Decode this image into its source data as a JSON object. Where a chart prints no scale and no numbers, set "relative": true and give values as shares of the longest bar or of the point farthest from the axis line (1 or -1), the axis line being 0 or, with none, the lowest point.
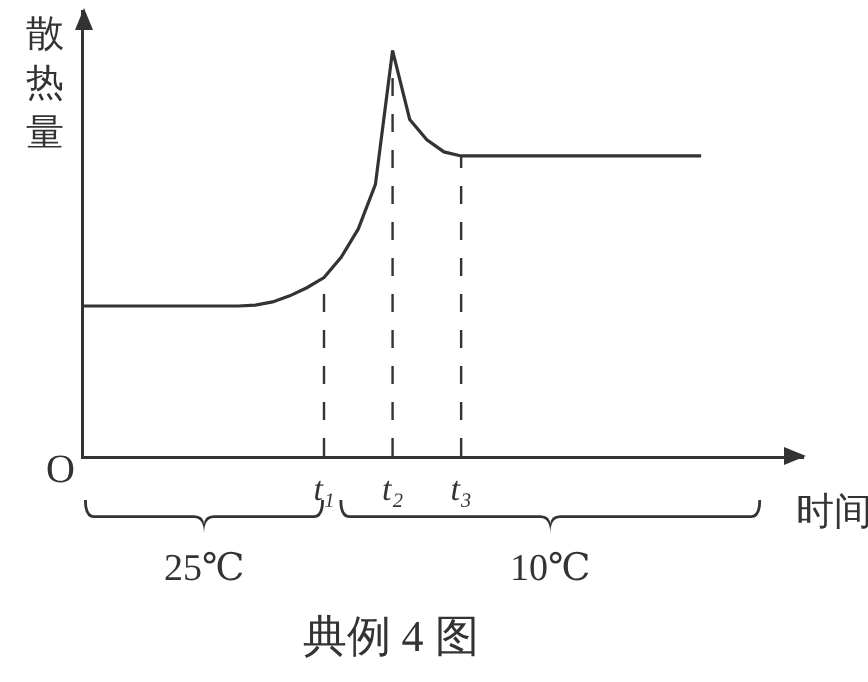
{
  "chart_data": {
    "type": "line",
    "relative": true,
    "title": "典例 4 图",
    "xlabel": "时间",
    "ylabel": "散热量",
    "annotations": [
      "O",
      "25℃",
      "10℃"
    ],
    "grid": false,
    "tick_labels": "x",
    "marker": "none",
    "line_style": "solid",
    "categories": [
      null,
      null,
      null,
      null,
      null,
      null,
      null,
      null,
      null,
      null,
      null,
      null,
      null,
      null,
      "t₁",
      null,
      null,
      null,
      "t₂",
      null,
      null,
      null,
      "t₃",
      null,
      null,
      null,
      null,
      null,
      null,
      null,
      null,
      null,
      null,
      null,
      null,
      null,
      null
    ],
    "series": [
      {
        "color": "#333333",
        "values": [
          0.37,
          0.37,
          0.37,
          0.37,
          0.37,
          0.37,
          0.37,
          0.37,
          0.37,
          0.37,
          0.372,
          0.38,
          0.395,
          0.415,
          0.44,
          0.49,
          0.56,
          0.67,
          1,
          0.83,
          0.78,
          0.75,
          0.74,
          0.74,
          0.74,
          0.74,
          0.74,
          0.74,
          0.74,
          0.74,
          0.74,
          0.74,
          0.74,
          0.74,
          0.74,
          0.74,
          0.74
        ]
      }
    ],
    "ref_lines": [
      {
        "axis": "x",
        "value": "t₁",
        "line_style": "dashed"
      },
      {
        "axis": "x",
        "value": "t₂",
        "line_style": "dashed"
      },
      {
        "axis": "x",
        "value": "t₃",
        "line_style": "dashed"
      }
    ]
  }
}
